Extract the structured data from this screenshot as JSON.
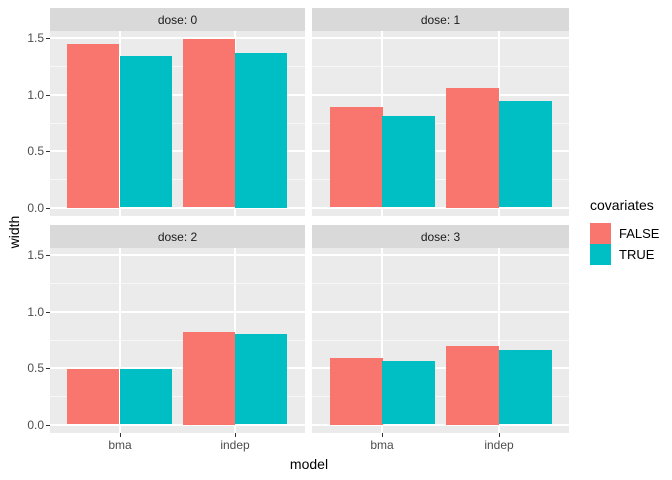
{
  "chart_data": {
    "type": "bar",
    "title": "",
    "xlabel": "model",
    "ylabel": "width",
    "categories": [
      "bma",
      "indep"
    ],
    "y_ticks": [
      0,
      0.5,
      1.0,
      1.5
    ],
    "y_tick_labels": [
      "0.0",
      "0.5",
      "1.0",
      "1.5"
    ],
    "y_minor_ticks": [
      0.25,
      0.75,
      1.25
    ],
    "ylim": [
      0,
      1.5
    ],
    "grid": true,
    "legend_position": "right",
    "legend": {
      "title": "covariates",
      "entries": [
        {
          "label": "FALSE",
          "color": "#F8766D"
        },
        {
          "label": "TRUE",
          "color": "#00BFC4"
        }
      ]
    },
    "facets": [
      {
        "label": "dose: 0",
        "series": [
          {
            "name": "FALSE",
            "values": [
              1.45,
              1.49
            ]
          },
          {
            "name": "TRUE",
            "values": [
              1.34,
              1.37
            ]
          }
        ]
      },
      {
        "label": "dose: 1",
        "series": [
          {
            "name": "FALSE",
            "values": [
              0.89,
              1.06
            ]
          },
          {
            "name": "TRUE",
            "values": [
              0.81,
              0.94
            ]
          }
        ]
      },
      {
        "label": "dose: 2",
        "series": [
          {
            "name": "FALSE",
            "values": [
              0.49,
              0.82
            ]
          },
          {
            "name": "TRUE",
            "values": [
              0.49,
              0.8
            ]
          }
        ]
      },
      {
        "label": "dose: 3",
        "series": [
          {
            "name": "FALSE",
            "values": [
              0.59,
              0.7
            ]
          },
          {
            "name": "TRUE",
            "values": [
              0.56,
              0.66
            ]
          }
        ]
      }
    ],
    "colors": {
      "false_fill": "#F8766D",
      "true_fill": "#00BFC4",
      "panel_bg": "#EBEBEB",
      "strip_bg": "#D9D9D9",
      "gridline": "#FFFFFF",
      "axis_text": "#4D4D4D",
      "strip_text": "#1A1A1A",
      "tick": "#333333"
    }
  }
}
